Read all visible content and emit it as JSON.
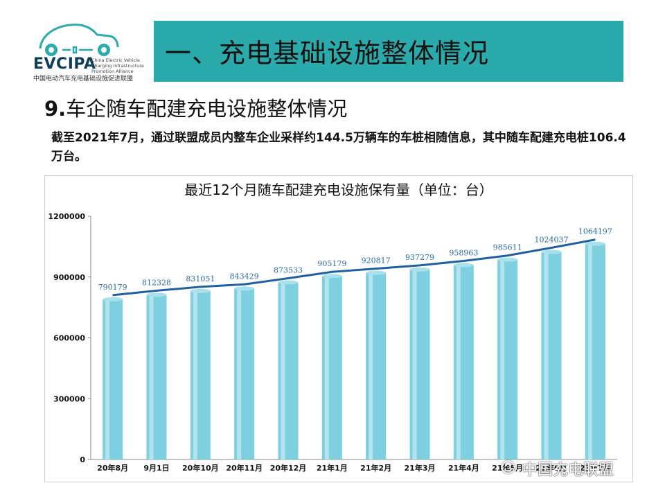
{
  "header": {
    "logo_text": "EVCIPA",
    "logo_sub": "China Electric Vehicle Charging Infrastructure Promotion Alliance",
    "logo_cn": "中国电动汽车充电基础设施促进联盟",
    "section_title": "一、充电基础设施整体情况"
  },
  "subtitle": {
    "number": "9.",
    "text": "车企随车配建充电设施整体情况"
  },
  "description": "截至2021年7月，通过联盟成员内整车企业采样约144.5万辆车的车桩相随信息，其中随车配建充电桩106.4万台。",
  "watermark": "中国充电联盟",
  "colors": {
    "title_bar": "#2baaac",
    "bar": "#7ecfe0",
    "line": "#1f5fa6",
    "value_label": "#2a6aa8"
  },
  "chart_data": {
    "type": "bar",
    "title": "最近12个月随车配建充电设施保有量（单位：台）",
    "categories": [
      "20年8月",
      "9月1日",
      "20年10月",
      "20年11月",
      "20年12月",
      "21年1月",
      "21年2月",
      "21年3月",
      "21年4月",
      "21年5月",
      "21年6月",
      "21年7月"
    ],
    "values": [
      790179,
      812328,
      831051,
      843429,
      873533,
      905179,
      920817,
      937279,
      958963,
      985611,
      1024037,
      1064197
    ],
    "line_overlay": true,
    "ylim": [
      0,
      1200000
    ],
    "yticks": [
      0,
      300000,
      600000,
      900000,
      1200000
    ],
    "grid": false,
    "legend": "none"
  }
}
